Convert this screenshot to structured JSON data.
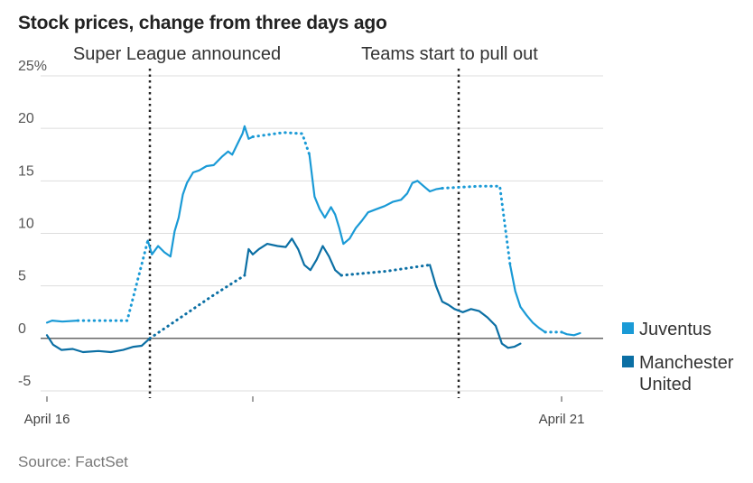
{
  "title": "Stock prices, change from three days ago",
  "source": "Source: FactSet",
  "colors": {
    "juventus": "#1a9ad6",
    "manutd": "#0b6fa4",
    "grid": "#dddddd",
    "zero": "#333333",
    "marker": "#222222"
  },
  "chart_data": {
    "type": "line",
    "title": "Stock prices, change from three days ago",
    "ylabel": "",
    "xlabel": "",
    "y_unit": "%",
    "ylim": [
      -5,
      25
    ],
    "yticks": [
      {
        "value": 25,
        "label": "25%"
      },
      {
        "value": 20,
        "label": "20"
      },
      {
        "value": 15,
        "label": "15"
      },
      {
        "value": 10,
        "label": "10"
      },
      {
        "value": 5,
        "label": "5"
      },
      {
        "value": 0,
        "label": "0"
      },
      {
        "value": -5,
        "label": "-5"
      }
    ],
    "xlim": [
      16.0,
      21.2
    ],
    "xticks": [
      {
        "value": 16,
        "label": "April 16"
      },
      {
        "value": 18,
        "label": ""
      },
      {
        "value": 21,
        "label": "April 21"
      }
    ],
    "grid": true,
    "legend_position": "right",
    "annotations": [
      {
        "x": 17.0,
        "label": "Super League announced"
      },
      {
        "x": 20.0,
        "label": "Teams start to pull out"
      }
    ],
    "series": [
      {
        "name": "Juventus",
        "key": "juventus",
        "segments": [
          {
            "style": "solid",
            "points": [
              [
                16.0,
                1.5
              ],
              [
                16.05,
                1.7
              ],
              [
                16.15,
                1.6
              ],
              [
                16.3,
                1.7
              ]
            ]
          },
          {
            "style": "dotted",
            "points": [
              [
                16.3,
                1.7
              ],
              [
                16.78,
                1.7
              ],
              [
                16.98,
                9.3
              ]
            ]
          },
          {
            "style": "solid",
            "points": [
              [
                16.98,
                9.3
              ],
              [
                17.02,
                8.0
              ],
              [
                17.08,
                8.8
              ],
              [
                17.14,
                8.2
              ],
              [
                17.2,
                7.8
              ],
              [
                17.24,
                10.2
              ],
              [
                17.28,
                11.5
              ],
              [
                17.32,
                13.7
              ],
              [
                17.36,
                14.8
              ],
              [
                17.42,
                15.8
              ],
              [
                17.48,
                16.0
              ],
              [
                17.55,
                16.4
              ],
              [
                17.62,
                16.5
              ],
              [
                17.7,
                17.3
              ],
              [
                17.76,
                17.8
              ],
              [
                17.8,
                17.5
              ],
              [
                17.85,
                18.5
              ],
              [
                17.9,
                19.5
              ],
              [
                17.92,
                20.2
              ],
              [
                17.96,
                19.0
              ],
              [
                18.0,
                19.2
              ]
            ]
          },
          {
            "style": "dotted",
            "points": [
              [
                18.0,
                19.2
              ],
              [
                18.3,
                19.6
              ],
              [
                18.48,
                19.5
              ],
              [
                18.55,
                17.5
              ]
            ]
          },
          {
            "style": "solid",
            "points": [
              [
                18.55,
                17.5
              ],
              [
                18.6,
                13.5
              ],
              [
                18.65,
                12.3
              ],
              [
                18.7,
                11.5
              ],
              [
                18.76,
                12.5
              ],
              [
                18.8,
                11.8
              ],
              [
                18.84,
                10.5
              ],
              [
                18.88,
                9.0
              ],
              [
                18.94,
                9.5
              ],
              [
                19.0,
                10.5
              ],
              [
                19.06,
                11.2
              ],
              [
                19.12,
                12.0
              ],
              [
                19.2,
                12.3
              ],
              [
                19.28,
                12.6
              ],
              [
                19.36,
                13.0
              ],
              [
                19.44,
                13.2
              ],
              [
                19.5,
                13.8
              ],
              [
                19.55,
                14.8
              ],
              [
                19.6,
                15.0
              ],
              [
                19.66,
                14.5
              ],
              [
                19.72,
                14.0
              ],
              [
                19.78,
                14.2
              ],
              [
                19.84,
                14.3
              ]
            ]
          },
          {
            "style": "dotted",
            "points": [
              [
                19.84,
                14.3
              ],
              [
                20.2,
                14.5
              ],
              [
                20.4,
                14.5
              ],
              [
                20.5,
                7.0
              ]
            ]
          },
          {
            "style": "solid",
            "points": [
              [
                20.5,
                7.0
              ],
              [
                20.55,
                4.5
              ],
              [
                20.6,
                3.0
              ],
              [
                20.66,
                2.2
              ],
              [
                20.72,
                1.5
              ],
              [
                20.78,
                1.0
              ],
              [
                20.84,
                0.6
              ]
            ]
          },
          {
            "style": "dotted",
            "points": [
              [
                20.84,
                0.6
              ],
              [
                21.0,
                0.6
              ]
            ]
          },
          {
            "style": "solid",
            "points": [
              [
                21.0,
                0.6
              ],
              [
                21.05,
                0.4
              ],
              [
                21.12,
                0.3
              ],
              [
                21.18,
                0.5
              ]
            ]
          }
        ]
      },
      {
        "name": "Manchester United",
        "key": "manutd",
        "segments": [
          {
            "style": "solid",
            "points": [
              [
                16.0,
                0.3
              ],
              [
                16.06,
                -0.6
              ],
              [
                16.14,
                -1.1
              ],
              [
                16.25,
                -1.0
              ],
              [
                16.35,
                -1.3
              ],
              [
                16.5,
                -1.2
              ],
              [
                16.62,
                -1.3
              ],
              [
                16.74,
                -1.1
              ],
              [
                16.84,
                -0.8
              ],
              [
                16.92,
                -0.7
              ],
              [
                17.0,
                0.0
              ]
            ]
          },
          {
            "style": "dotted",
            "points": [
              [
                17.0,
                0.0
              ],
              [
                17.3,
                2.0
              ],
              [
                17.6,
                4.0
              ],
              [
                17.92,
                6.0
              ]
            ]
          },
          {
            "style": "solid",
            "points": [
              [
                17.92,
                6.0
              ],
              [
                17.96,
                8.5
              ],
              [
                18.0,
                8.0
              ],
              [
                18.06,
                8.5
              ],
              [
                18.14,
                9.0
              ],
              [
                18.24,
                8.8
              ],
              [
                18.32,
                8.7
              ],
              [
                18.38,
                9.5
              ],
              [
                18.44,
                8.5
              ],
              [
                18.5,
                7.0
              ],
              [
                18.56,
                6.5
              ],
              [
                18.62,
                7.5
              ],
              [
                18.68,
                8.8
              ],
              [
                18.74,
                7.8
              ],
              [
                18.8,
                6.5
              ],
              [
                18.86,
                6.0
              ]
            ]
          },
          {
            "style": "dotted",
            "points": [
              [
                18.86,
                6.0
              ],
              [
                19.3,
                6.4
              ],
              [
                19.72,
                7.0
              ]
            ]
          },
          {
            "style": "solid",
            "points": [
              [
                19.72,
                7.0
              ],
              [
                19.78,
                5.0
              ],
              [
                19.84,
                3.5
              ],
              [
                19.9,
                3.2
              ],
              [
                19.96,
                2.8
              ],
              [
                20.04,
                2.5
              ],
              [
                20.12,
                2.8
              ],
              [
                20.2,
                2.6
              ],
              [
                20.28,
                2.0
              ],
              [
                20.36,
                1.2
              ],
              [
                20.42,
                -0.5
              ],
              [
                20.48,
                -0.9
              ],
              [
                20.54,
                -0.8
              ],
              [
                20.6,
                -0.5
              ]
            ]
          }
        ]
      }
    ]
  }
}
